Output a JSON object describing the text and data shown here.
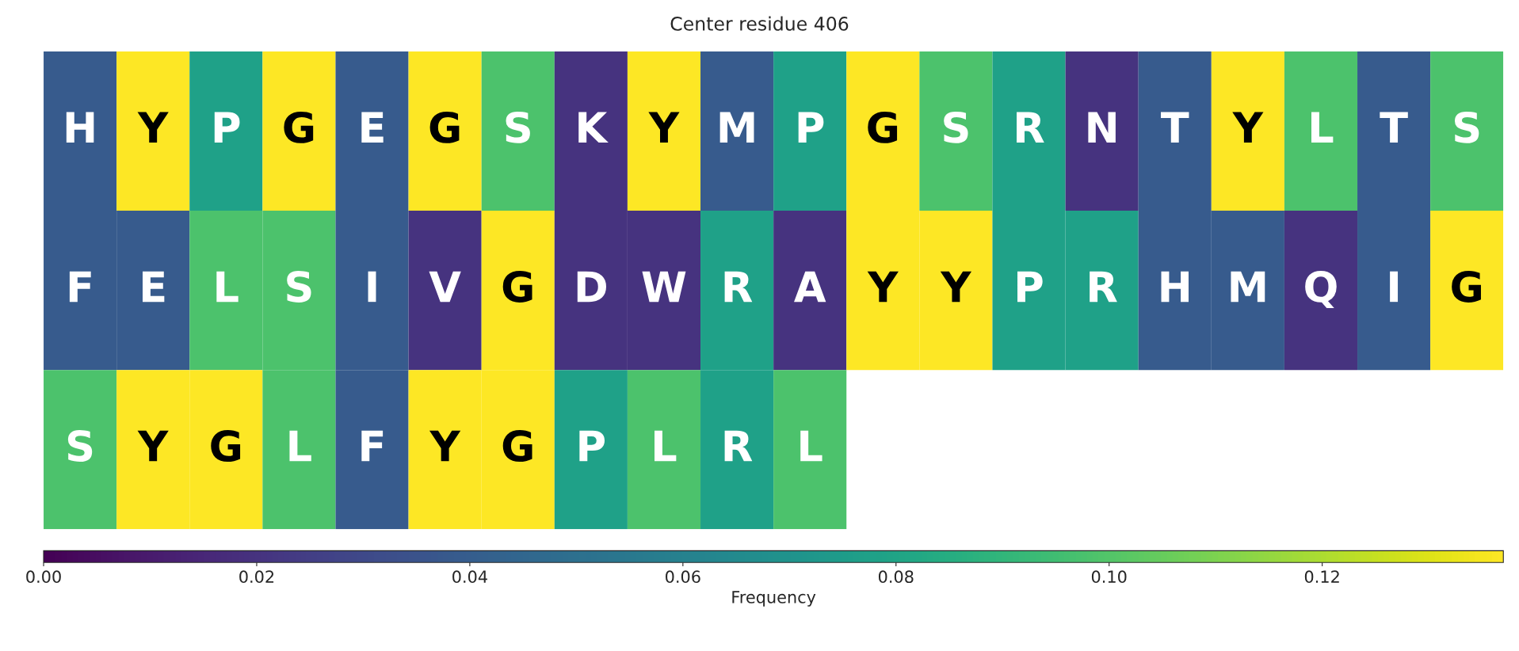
{
  "chart_data": {
    "type": "heatmap",
    "title": "Center residue 406",
    "clabel": "Frequency",
    "categories": [
      null,
      null,
      null,
      null,
      null,
      null,
      null,
      null,
      null,
      null,
      null,
      null,
      null,
      null,
      null,
      null,
      null,
      null,
      null,
      null
    ],
    "y_categories": [
      null,
      null,
      null
    ],
    "cells": [
      [
        0.039,
        0.137,
        0.078,
        0.137,
        0.039,
        0.137,
        0.098,
        0.02,
        0.137,
        0.039,
        0.078,
        0.137,
        0.098,
        0.078,
        0.02,
        0.039,
        0.137,
        0.098,
        0.039,
        0.098
      ],
      [
        0.039,
        0.039,
        0.098,
        0.098,
        0.039,
        0.02,
        0.137,
        0.02,
        0.02,
        0.078,
        0.02,
        0.137,
        0.137,
        0.078,
        0.078,
        0.039,
        0.039,
        0.02,
        0.039,
        0.137
      ],
      [
        0.098,
        0.137,
        0.137,
        0.098,
        0.039,
        0.137,
        0.137,
        0.078,
        0.098,
        0.078,
        0.098,
        null,
        null,
        null,
        null,
        null,
        null,
        null,
        null,
        null
      ]
    ],
    "cell_labels": [
      [
        "H",
        "Y",
        "P",
        "G",
        "E",
        "G",
        "S",
        "K",
        "Y",
        "M",
        "P",
        "G",
        "S",
        "R",
        "N",
        "T",
        "Y",
        "L",
        "T",
        "S"
      ],
      [
        "F",
        "E",
        "L",
        "S",
        "I",
        "V",
        "G",
        "D",
        "W",
        "R",
        "A",
        "Y",
        "Y",
        "P",
        "R",
        "H",
        "M",
        "Q",
        "I",
        "G"
      ],
      [
        "S",
        "Y",
        "G",
        "L",
        "F",
        "Y",
        "G",
        "P",
        "L",
        "R",
        "L",
        null,
        null,
        null,
        null,
        null,
        null,
        null,
        null,
        null
      ]
    ],
    "clim": [
      0,
      0.137
    ],
    "cticks": [
      {
        "value": 0,
        "label": "0.00"
      },
      {
        "value": 0.02,
        "label": "0.02"
      },
      {
        "value": 0.04,
        "label": "0.04"
      },
      {
        "value": 0.06,
        "label": "0.06"
      },
      {
        "value": 0.08,
        "label": "0.08"
      },
      {
        "value": 0.1,
        "label": "0.10"
      },
      {
        "value": 0.12,
        "label": "0.12"
      }
    ]
  }
}
